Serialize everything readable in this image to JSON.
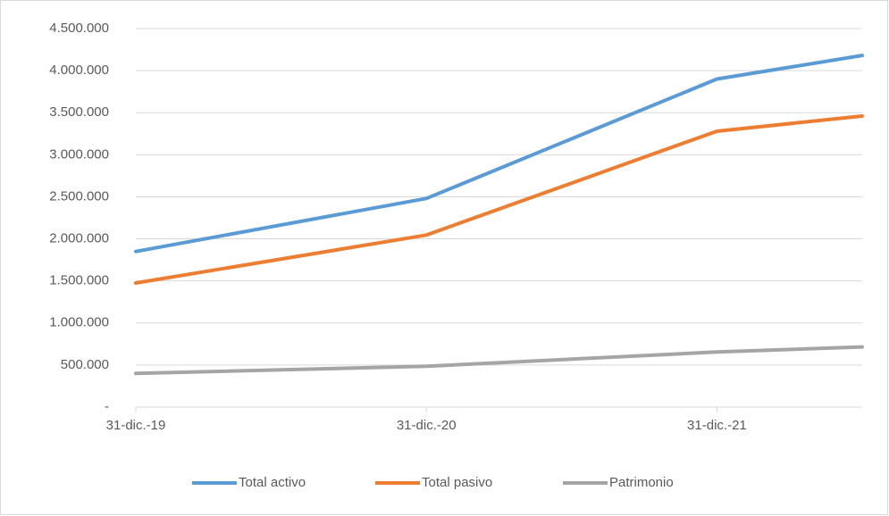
{
  "chart_data": {
    "type": "line",
    "categories": [
      "31-dic.-19",
      "31-dic.-20",
      "31-dic.-21",
      null
    ],
    "series": [
      {
        "name": "Total activo",
        "color": "#5b9bd5",
        "values": [
          1850000,
          2480000,
          3900000,
          4180000
        ]
      },
      {
        "name": "Total pasivo",
        "color": "#ed7d31",
        "values": [
          1475000,
          2045000,
          3280000,
          3460000
        ]
      },
      {
        "name": "Patrimonio",
        "color": "#a5a5a5",
        "values": [
          400000,
          485000,
          655000,
          715000
        ]
      }
    ],
    "ylim": [
      0,
      4500000
    ],
    "yticks": [
      {
        "value": 0,
        "label": "-"
      },
      {
        "value": 500000,
        "label": "500.000"
      },
      {
        "value": 1000000,
        "label": "1.000.000"
      },
      {
        "value": 1500000,
        "label": "1.500.000"
      },
      {
        "value": 2000000,
        "label": "2.000.000"
      },
      {
        "value": 2500000,
        "label": "2.500.000"
      },
      {
        "value": 3000000,
        "label": "3.000.000"
      },
      {
        "value": 3500000,
        "label": "3.500.000"
      },
      {
        "value": 4000000,
        "label": "4.000.000"
      },
      {
        "value": 4500000,
        "label": "4.500.000"
      }
    ],
    "grid": true,
    "legend": "bottom"
  }
}
